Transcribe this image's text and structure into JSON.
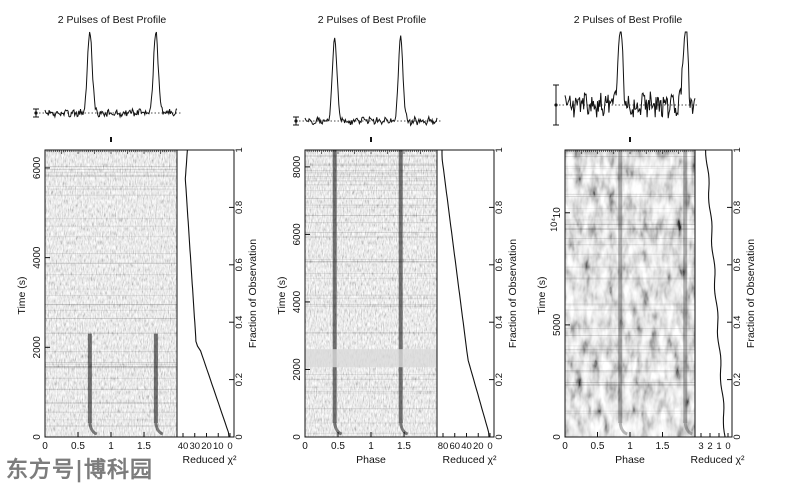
{
  "panels": [
    {
      "title": "2 Pulses of Best Profile",
      "time_ticks": [
        0,
        2000,
        4000,
        6000
      ],
      "time_max": 6400,
      "time_exponent": "",
      "phase_ticks": [
        0,
        0.5,
        1,
        1.5
      ],
      "phase_xlabel": "",
      "chi2_ticks": [
        "40",
        "30",
        "20",
        "10",
        "0"
      ],
      "pulse_phases": [
        0.68,
        1.68
      ],
      "pulse_end_fraction": 0.36,
      "background": "fine-noise"
    },
    {
      "title": "2 Pulses of Best Profile",
      "time_ticks": [
        0,
        2000,
        4000,
        6000,
        8000
      ],
      "time_max": 8500,
      "time_exponent": "",
      "phase_ticks": [
        0,
        0.5,
        1,
        1.5
      ],
      "phase_xlabel": "Phase",
      "chi2_ticks": [
        "80",
        "60",
        "40",
        "20",
        "0"
      ],
      "pulse_phases": [
        0.45,
        1.45
      ],
      "pulse_end_fraction": 1.0,
      "background": "fine-noise"
    },
    {
      "title": "2 Pulses of Best Profile",
      "time_ticks": [
        0,
        5000,
        10000
      ],
      "time_tick_labels": [
        "0",
        "5000",
        "10"
      ],
      "time_max": 12800,
      "time_exponent": "10⁴",
      "phase_ticks": [
        0,
        0.5,
        1,
        1.5
      ],
      "phase_xlabel": "Phase",
      "chi2_ticks": [
        "3",
        "2",
        "1",
        "0"
      ],
      "pulse_phases": [
        0.85,
        1.85
      ],
      "pulse_end_fraction": 1.0,
      "background": "coarse-noise"
    }
  ],
  "chart_data": {
    "type": "line",
    "time_axis_label": "Time (s)",
    "fraction_axis_label": "Fraction of Observation",
    "fraction_ticks": [
      0,
      0.2,
      0.4,
      0.6,
      0.8,
      1
    ],
    "chi2_axis_label": "Reduced χ²"
  },
  "watermark": "东方号|博科园"
}
